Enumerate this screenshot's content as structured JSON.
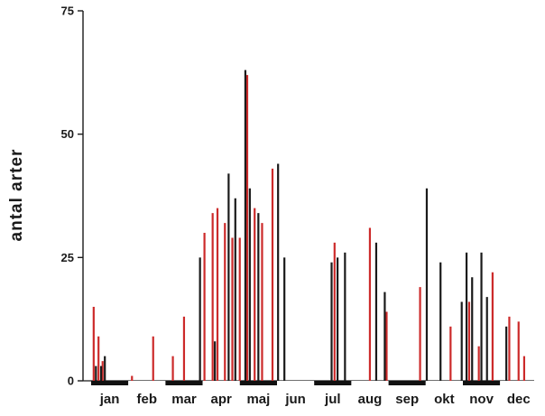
{
  "chart_data": {
    "type": "bar",
    "title": "",
    "xlabel": "",
    "ylabel": "antal arter",
    "ylim": [
      0,
      75
    ],
    "yticks": [
      0,
      25,
      50,
      75
    ],
    "grid": false,
    "legend": "none",
    "categories": [
      "jan",
      "feb",
      "mar",
      "apr",
      "maj",
      "jun",
      "jul",
      "aug",
      "sep",
      "okt",
      "nov",
      "dec"
    ],
    "colors": {
      "red": "#cc2a2a",
      "black": "#1a1a1a"
    },
    "series": [
      {
        "color_key": "red",
        "points": [
          {
            "month": 1.02,
            "value": 15
          },
          {
            "month": 1.15,
            "value": 9
          },
          {
            "month": 1.26,
            "value": 4
          },
          {
            "month": 2.05,
            "value": 1
          },
          {
            "month": 2.62,
            "value": 9
          },
          {
            "month": 3.15,
            "value": 5
          },
          {
            "month": 3.45,
            "value": 13
          },
          {
            "month": 4.0,
            "value": 30
          },
          {
            "month": 4.22,
            "value": 34
          },
          {
            "month": 4.35,
            "value": 35
          },
          {
            "month": 4.55,
            "value": 32
          },
          {
            "month": 4.75,
            "value": 29
          },
          {
            "month": 4.95,
            "value": 29
          },
          {
            "month": 5.15,
            "value": 62
          },
          {
            "month": 5.35,
            "value": 35
          },
          {
            "month": 5.55,
            "value": 32
          },
          {
            "month": 5.83,
            "value": 43
          },
          {
            "month": 7.5,
            "value": 28
          },
          {
            "month": 8.45,
            "value": 31
          },
          {
            "month": 8.9,
            "value": 14
          },
          {
            "month": 9.8,
            "value": 19
          },
          {
            "month": 10.62,
            "value": 11
          },
          {
            "month": 11.12,
            "value": 16
          },
          {
            "month": 11.38,
            "value": 7
          },
          {
            "month": 11.75,
            "value": 22
          },
          {
            "month": 12.2,
            "value": 13
          },
          {
            "month": 12.45,
            "value": 12
          },
          {
            "month": 12.6,
            "value": 5
          }
        ]
      },
      {
        "color_key": "black",
        "points": [
          {
            "month": 1.08,
            "value": 3
          },
          {
            "month": 1.22,
            "value": 3
          },
          {
            "month": 1.32,
            "value": 5
          },
          {
            "month": 3.88,
            "value": 25
          },
          {
            "month": 4.28,
            "value": 8
          },
          {
            "month": 4.65,
            "value": 42
          },
          {
            "month": 4.83,
            "value": 37
          },
          {
            "month": 5.1,
            "value": 63
          },
          {
            "month": 5.22,
            "value": 39
          },
          {
            "month": 5.45,
            "value": 34
          },
          {
            "month": 5.98,
            "value": 44
          },
          {
            "month": 6.15,
            "value": 25
          },
          {
            "month": 7.42,
            "value": 24
          },
          {
            "month": 7.58,
            "value": 25
          },
          {
            "month": 7.78,
            "value": 26
          },
          {
            "month": 8.62,
            "value": 28
          },
          {
            "month": 8.85,
            "value": 18
          },
          {
            "month": 9.98,
            "value": 39
          },
          {
            "month": 10.35,
            "value": 24
          },
          {
            "month": 10.92,
            "value": 16
          },
          {
            "month": 11.05,
            "value": 26
          },
          {
            "month": 11.2,
            "value": 21
          },
          {
            "month": 11.45,
            "value": 26
          },
          {
            "month": 11.6,
            "value": 17
          },
          {
            "month": 12.12,
            "value": 11
          }
        ]
      }
    ],
    "month_segments": [
      {
        "month": 1,
        "fill": "black"
      },
      {
        "month": 2,
        "fill": "white"
      },
      {
        "month": 3,
        "fill": "black"
      },
      {
        "month": 4,
        "fill": "white"
      },
      {
        "month": 5,
        "fill": "black"
      },
      {
        "month": 6,
        "fill": "white"
      },
      {
        "month": 7,
        "fill": "black"
      },
      {
        "month": 8,
        "fill": "white"
      },
      {
        "month": 9,
        "fill": "black"
      },
      {
        "month": 10,
        "fill": "white"
      },
      {
        "month": 11,
        "fill": "black"
      },
      {
        "month": 12,
        "fill": "white"
      }
    ]
  }
}
